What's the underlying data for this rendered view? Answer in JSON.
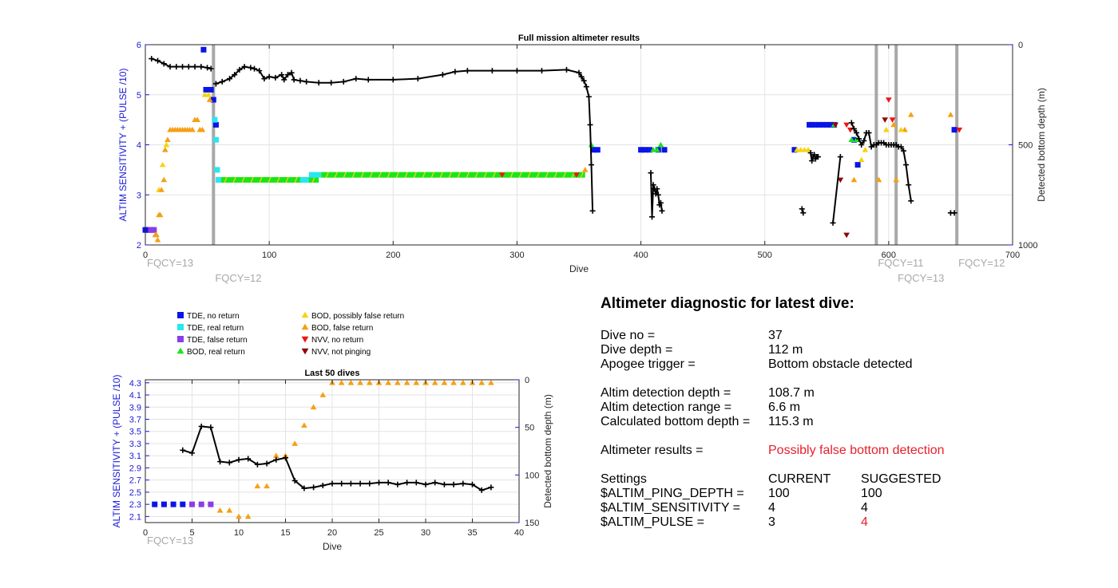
{
  "colors": {
    "tde_no_return": "#0a14e6",
    "tde_real_return": "#29e6f0",
    "tde_false_return": "#8a3de6",
    "bod_real_return": "#19e619",
    "bod_possibly_false": "#f5d40f",
    "bod_false": "#f5a014",
    "nvv_no_return": "#f01414",
    "nvv_not_pinging": "#8c0a0a",
    "depth_line": "#000000",
    "fqcy_line": "#a8a8a8",
    "left_axis": "#1a1ad8",
    "highlight": "#e8202a"
  },
  "chart_data": [
    {
      "type": "scatter",
      "title": "Full mission altimeter results",
      "xlabel": "Dive",
      "ylabel": "ALTIM SENSITIVITY + (PULSE /10)",
      "y2label": "Detected bottom depth (m)",
      "xlim": [
        0,
        700
      ],
      "ylim": [
        2,
        6
      ],
      "y2lim": [
        1000,
        0
      ],
      "xticks": [
        0,
        100,
        200,
        300,
        400,
        500,
        600,
        700
      ],
      "yticks": [
        2,
        3,
        4,
        5,
        6
      ],
      "y2ticks": [
        0,
        500,
        1000
      ],
      "grid": true,
      "fqcy_changes": [
        {
          "x": 0,
          "label": "FQCY=13",
          "row": 1
        },
        {
          "x": 55,
          "label": "FQCY=12",
          "row": 2
        },
        {
          "x": 590,
          "label": "FQCY=11",
          "row": 1
        },
        {
          "x": 606,
          "label": "FQCY=13",
          "row": 2
        },
        {
          "x": 655,
          "label": "FQCY=12",
          "row": 1
        }
      ],
      "markers": [
        {
          "cat": "tde_false_return",
          "shape": "square",
          "x": [
            1,
            2,
            3,
            4,
            5,
            6,
            7
          ],
          "y": [
            2.3,
            2.3,
            2.3,
            2.3,
            2.3,
            2.3,
            2.3
          ]
        },
        {
          "cat": "tde_no_return",
          "shape": "square",
          "x": [
            0,
            47,
            49,
            53,
            55,
            57
          ],
          "y": [
            2.3,
            5.9,
            5.1,
            5.1,
            4.9,
            4.4
          ]
        },
        {
          "cat": "tde_real_return",
          "shape": "square",
          "x": [
            56,
            57,
            58,
            59
          ],
          "y": [
            4.5,
            4.1,
            3.5,
            3.3
          ]
        },
        {
          "cat": "bod_possibly_false",
          "shape": "tri-up",
          "x": [
            11,
            14,
            17,
            48,
            51
          ],
          "y": [
            3.1,
            3.6,
            4.0,
            5.0,
            5.0
          ]
        },
        {
          "cat": "bod_false",
          "shape": "tri-up",
          "x": [
            8,
            9,
            10,
            11,
            12,
            13,
            15,
            16,
            18,
            20,
            22,
            24,
            26,
            28,
            30,
            32,
            34,
            36,
            38,
            40,
            42,
            44,
            46,
            52,
            355,
            572,
            592,
            604,
            606,
            613,
            618,
            650
          ],
          "y": [
            2.2,
            2.2,
            2.1,
            2.6,
            2.6,
            3.1,
            3.3,
            3.9,
            4.1,
            4.3,
            4.3,
            4.3,
            4.3,
            4.3,
            4.3,
            4.3,
            4.3,
            4.3,
            4.3,
            4.5,
            4.5,
            4.3,
            4.3,
            4.9,
            3.5,
            3.3,
            3.3,
            4.4,
            3.3,
            4.3,
            4.6,
            4.6
          ]
        },
        {
          "cat": "tde_no_return",
          "shape": "square",
          "x": [
            362,
            365,
            400,
            403,
            407,
            414,
            419,
            524,
            536,
            538,
            541,
            544,
            547,
            550,
            553,
            556,
            572,
            575,
            653
          ],
          "y": [
            3.9,
            3.9,
            3.9,
            3.9,
            3.9,
            3.9,
            3.9,
            3.9,
            4.4,
            4.4,
            4.4,
            4.4,
            4.4,
            4.4,
            4.4,
            4.4,
            4.1,
            3.6,
            4.3
          ]
        },
        {
          "cat": "bod_real_return",
          "shape": "tri-up",
          "x": [
            360,
            410,
            413,
            416,
            556,
            570,
            574
          ],
          "y": [
            4.0,
            3.9,
            3.9,
            4.0,
            4.4,
            4.1,
            4.1
          ]
        },
        {
          "cat": "bod_possibly_false",
          "shape": "tri-up",
          "x": [
            526,
            529,
            532,
            535,
            578,
            581,
            598,
            610
          ],
          "y": [
            3.9,
            3.9,
            3.9,
            3.9,
            3.7,
            3.9,
            4.3,
            4.3
          ]
        },
        {
          "cat": "nvv_no_return",
          "shape": "tri-down",
          "x": [
            288,
            348,
            566,
            569,
            600,
            603,
            657
          ],
          "y": [
            3.4,
            3.4,
            4.4,
            4.3,
            4.9,
            4.5,
            4.3
          ]
        },
        {
          "cat": "nvv_not_pinging",
          "shape": "tri-down",
          "x": [
            557,
            561,
            566,
            597
          ],
          "y": [
            4.4,
            3.3,
            2.2,
            4.5
          ]
        }
      ],
      "bands": [
        {
          "cat": "bod_real_return",
          "x_from": 60,
          "x_to": 140,
          "y": 3.3
        },
        {
          "cat": "tde_real_return",
          "x_from": 125,
          "x_to": 132,
          "y": 3.3
        },
        {
          "cat": "tde_real_return",
          "x_from": 132,
          "x_to": 142,
          "y": 3.4
        },
        {
          "cat": "bod_real_return",
          "x_from": 142,
          "x_to": 355,
          "y": 3.4
        }
      ],
      "depth_series": [
        {
          "x": [
            5,
            10,
            15,
            20,
            25,
            30,
            35,
            40,
            45,
            50,
            53
          ],
          "y": [
            70,
            80,
            95,
            110,
            110,
            110,
            110,
            110,
            110,
            115,
            120
          ]
        },
        {
          "x": [
            57,
            62,
            68,
            72,
            76,
            80,
            85,
            88,
            92,
            96,
            100,
            105,
            110,
            112,
            115,
            118,
            120,
            125,
            130,
            140,
            150,
            160,
            170,
            180,
            200,
            220,
            240,
            250,
            260,
            280,
            300,
            320,
            340,
            350,
            352,
            354,
            356,
            358,
            359,
            360,
            361
          ],
          "y": [
            195,
            185,
            170,
            150,
            125,
            110,
            115,
            120,
            130,
            170,
            160,
            165,
            150,
            175,
            150,
            140,
            175,
            180,
            185,
            190,
            190,
            185,
            170,
            175,
            175,
            170,
            150,
            135,
            130,
            130,
            130,
            130,
            125,
            140,
            160,
            180,
            210,
            260,
            400,
            600,
            830
          ]
        },
        {
          "x": [
            408,
            409,
            410,
            411,
            412,
            413,
            414,
            415,
            416,
            417
          ],
          "y": [
            640,
            860,
            700,
            720,
            745,
            720,
            750,
            800,
            790,
            830
          ]
        },
        {
          "x": [
            530,
            531
          ],
          "y": [
            820,
            840
          ]
        },
        {
          "x": [
            537,
            538,
            539,
            540,
            541,
            542,
            543
          ],
          "y": [
            540,
            580,
            560,
            550,
            570,
            560,
            560
          ]
        },
        {
          "x": [
            570,
            572,
            574,
            576,
            578,
            580,
            582,
            584,
            586,
            588,
            590,
            592,
            594,
            596,
            598,
            600,
            602,
            604,
            606,
            608,
            610,
            612,
            614,
            616,
            618
          ],
          "y": [
            390,
            420,
            440,
            470,
            500,
            480,
            440,
            440,
            510,
            500,
            500,
            490,
            490,
            490,
            500,
            500,
            500,
            500,
            500,
            510,
            510,
            530,
            600,
            700,
            780
          ]
        },
        {
          "x": [
            555,
            561
          ],
          "y": [
            890,
            560
          ]
        },
        {
          "x": [
            650,
            653
          ],
          "y": [
            840,
            840
          ]
        }
      ]
    },
    {
      "type": "scatter",
      "title": "Last 50 dives",
      "xlabel": "Dive",
      "ylabel": "ALTIM SENSITIVITY + (PULSE /10)",
      "y2label": "Detected bottom depth (m)",
      "xlim": [
        0,
        40
      ],
      "ylim": [
        2,
        4.35
      ],
      "y2lim": [
        150,
        0
      ],
      "xticks": [
        0,
        5,
        10,
        15,
        20,
        25,
        30,
        35,
        40
      ],
      "yticks": [
        2.1,
        2.3,
        2.5,
        2.7,
        2.9,
        3.1,
        3.3,
        3.5,
        3.7,
        3.9,
        4.1,
        4.3
      ],
      "y2ticks": [
        0,
        50,
        100,
        150
      ],
      "grid": true,
      "fqcy_changes": [
        {
          "x": 0,
          "label": "FQCY=13",
          "row": 1
        }
      ],
      "markers": [
        {
          "cat": "tde_no_return",
          "shape": "square",
          "x": [
            1,
            2,
            3,
            4
          ],
          "y": [
            2.3,
            2.3,
            2.3,
            2.3
          ]
        },
        {
          "cat": "tde_false_return",
          "shape": "square",
          "x": [
            5,
            6,
            7
          ],
          "y": [
            2.3,
            2.3,
            2.3
          ]
        },
        {
          "cat": "bod_false",
          "shape": "tri-up",
          "x": [
            8,
            9,
            10,
            11,
            12,
            13,
            14,
            15,
            16,
            17,
            18,
            19,
            20,
            21,
            22,
            23,
            24,
            25,
            26,
            27,
            28,
            29,
            30,
            31,
            32,
            33,
            34,
            35,
            36,
            37
          ],
          "y": [
            2.2,
            2.2,
            2.1,
            2.1,
            2.6,
            2.6,
            3.1,
            3.1,
            3.3,
            3.6,
            3.9,
            4.1,
            4.3,
            4.3,
            4.3,
            4.3,
            4.3,
            4.3,
            4.3,
            4.3,
            4.3,
            4.3,
            4.3,
            4.3,
            4.3,
            4.3,
            4.3,
            4.3,
            4.3,
            4.3
          ]
        }
      ],
      "bands": [],
      "depth_series": [
        {
          "x": [
            4,
            5,
            6,
            7,
            8,
            9,
            10,
            11,
            12,
            13,
            14,
            15,
            16,
            17,
            18,
            19,
            20,
            21,
            22,
            23,
            24,
            25,
            26,
            27,
            28,
            29,
            30,
            31,
            32,
            33,
            34,
            35,
            36,
            37
          ],
          "y": [
            74,
            77,
            49,
            50,
            86,
            87,
            84,
            83,
            89,
            88,
            84,
            82,
            106,
            114,
            113,
            111,
            109,
            109,
            109,
            109,
            109,
            108,
            108,
            110,
            108,
            108,
            110,
            108,
            110,
            110,
            109,
            110,
            116,
            113
          ]
        }
      ]
    }
  ],
  "legend": [
    {
      "cat": "tde_no_return",
      "shape": "square",
      "label": "TDE, no return"
    },
    {
      "cat": "tde_real_return",
      "shape": "square",
      "label": "TDE, real return"
    },
    {
      "cat": "tde_false_return",
      "shape": "square",
      "label": "TDE, false return"
    },
    {
      "cat": "bod_real_return",
      "shape": "tri-up",
      "label": "BOD, real return"
    },
    {
      "cat": "bod_possibly_false",
      "shape": "tri-up",
      "label": "BOD, possibly false return"
    },
    {
      "cat": "bod_false",
      "shape": "tri-up",
      "label": "BOD, false return"
    },
    {
      "cat": "nvv_no_return",
      "shape": "tri-down",
      "label": "NVV, no return"
    },
    {
      "cat": "nvv_not_pinging",
      "shape": "tri-down",
      "label": "NVV, not pinging"
    }
  ],
  "diagnostic": {
    "title": "Altimeter diagnostic for latest dive:",
    "dive_no": {
      "label": "Dive no =",
      "value": "37"
    },
    "dive_depth": {
      "label": "Dive depth =",
      "value": "112 m"
    },
    "apogee_trigger": {
      "label": "Apogee trigger =",
      "value": "Bottom obstacle detected"
    },
    "altim_detection_depth": {
      "label": "Altim detection depth =",
      "value": "108.7 m"
    },
    "altim_detection_range": {
      "label": "Altim detection range =",
      "value": "6.6 m"
    },
    "calculated_bottom_depth": {
      "label": "Calculated bottom depth =",
      "value": "115.3 m"
    },
    "altimeter_results": {
      "label": "Altimeter results =",
      "value": "Possibly false bottom detection"
    },
    "settings": {
      "header": {
        "label": "Settings",
        "current": "CURRENT",
        "suggested": "SUGGESTED"
      },
      "ping_depth": {
        "label": "$ALTIM_PING_DEPTH =",
        "current": "100",
        "suggested": "100"
      },
      "sensitivity": {
        "label": "$ALTIM_SENSITIVITY =",
        "current": "4",
        "suggested": "4"
      },
      "pulse": {
        "label": "$ALTIM_PULSE =",
        "current": "3",
        "suggested": "4"
      }
    }
  }
}
